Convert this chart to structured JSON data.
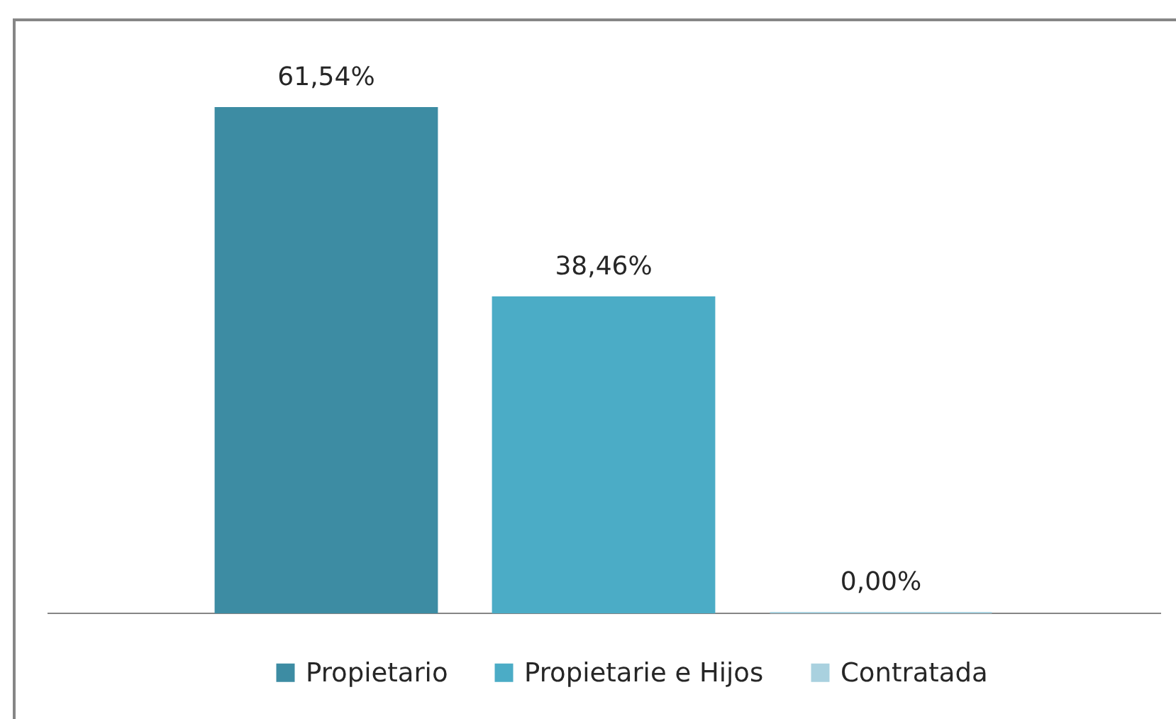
{
  "chart_data": {
    "type": "bar",
    "categories": [
      null
    ],
    "series": [
      {
        "name": "Propietario",
        "color": "#3d8ca3",
        "values": [
          61.54
        ],
        "value_labels": [
          "61,54%"
        ]
      },
      {
        "name": "Propietarie e Hijos",
        "color": "#4bacc6",
        "values": [
          38.46
        ],
        "value_labels": [
          "38,46%"
        ]
      },
      {
        "name": "Contratada",
        "color": "#a9d1df",
        "values": [
          0
        ],
        "value_labels": [
          "0,00%"
        ]
      }
    ],
    "legend": "bottom"
  }
}
